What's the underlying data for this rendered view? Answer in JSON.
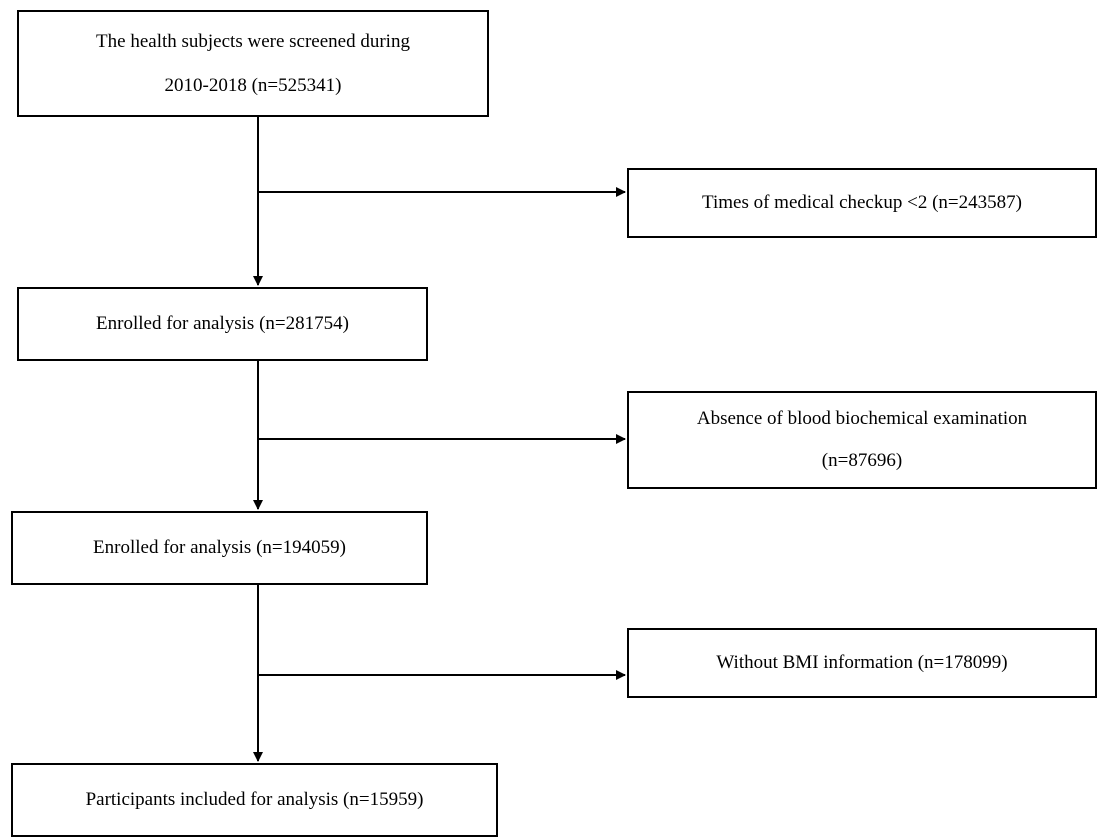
{
  "flowchart": {
    "steps": [
      {
        "lines": [
          "The health subjects were  screened during",
          "2010-2018 (n=525341)"
        ]
      },
      {
        "lines": [
          "Enrolled for analysis (n=281754)"
        ]
      },
      {
        "lines": [
          "Enrolled for analysis (n=194059)"
        ]
      },
      {
        "lines": [
          "Participants included for analysis (n=15959)"
        ]
      }
    ],
    "exclusions": [
      {
        "lines": [
          "Times of medical  checkup <2 (n=243587)"
        ]
      },
      {
        "lines": [
          "Absence of blood biochemical examination",
          "(n=87696)"
        ]
      },
      {
        "lines": [
          "Without BMI information (n=178099)"
        ]
      }
    ]
  }
}
